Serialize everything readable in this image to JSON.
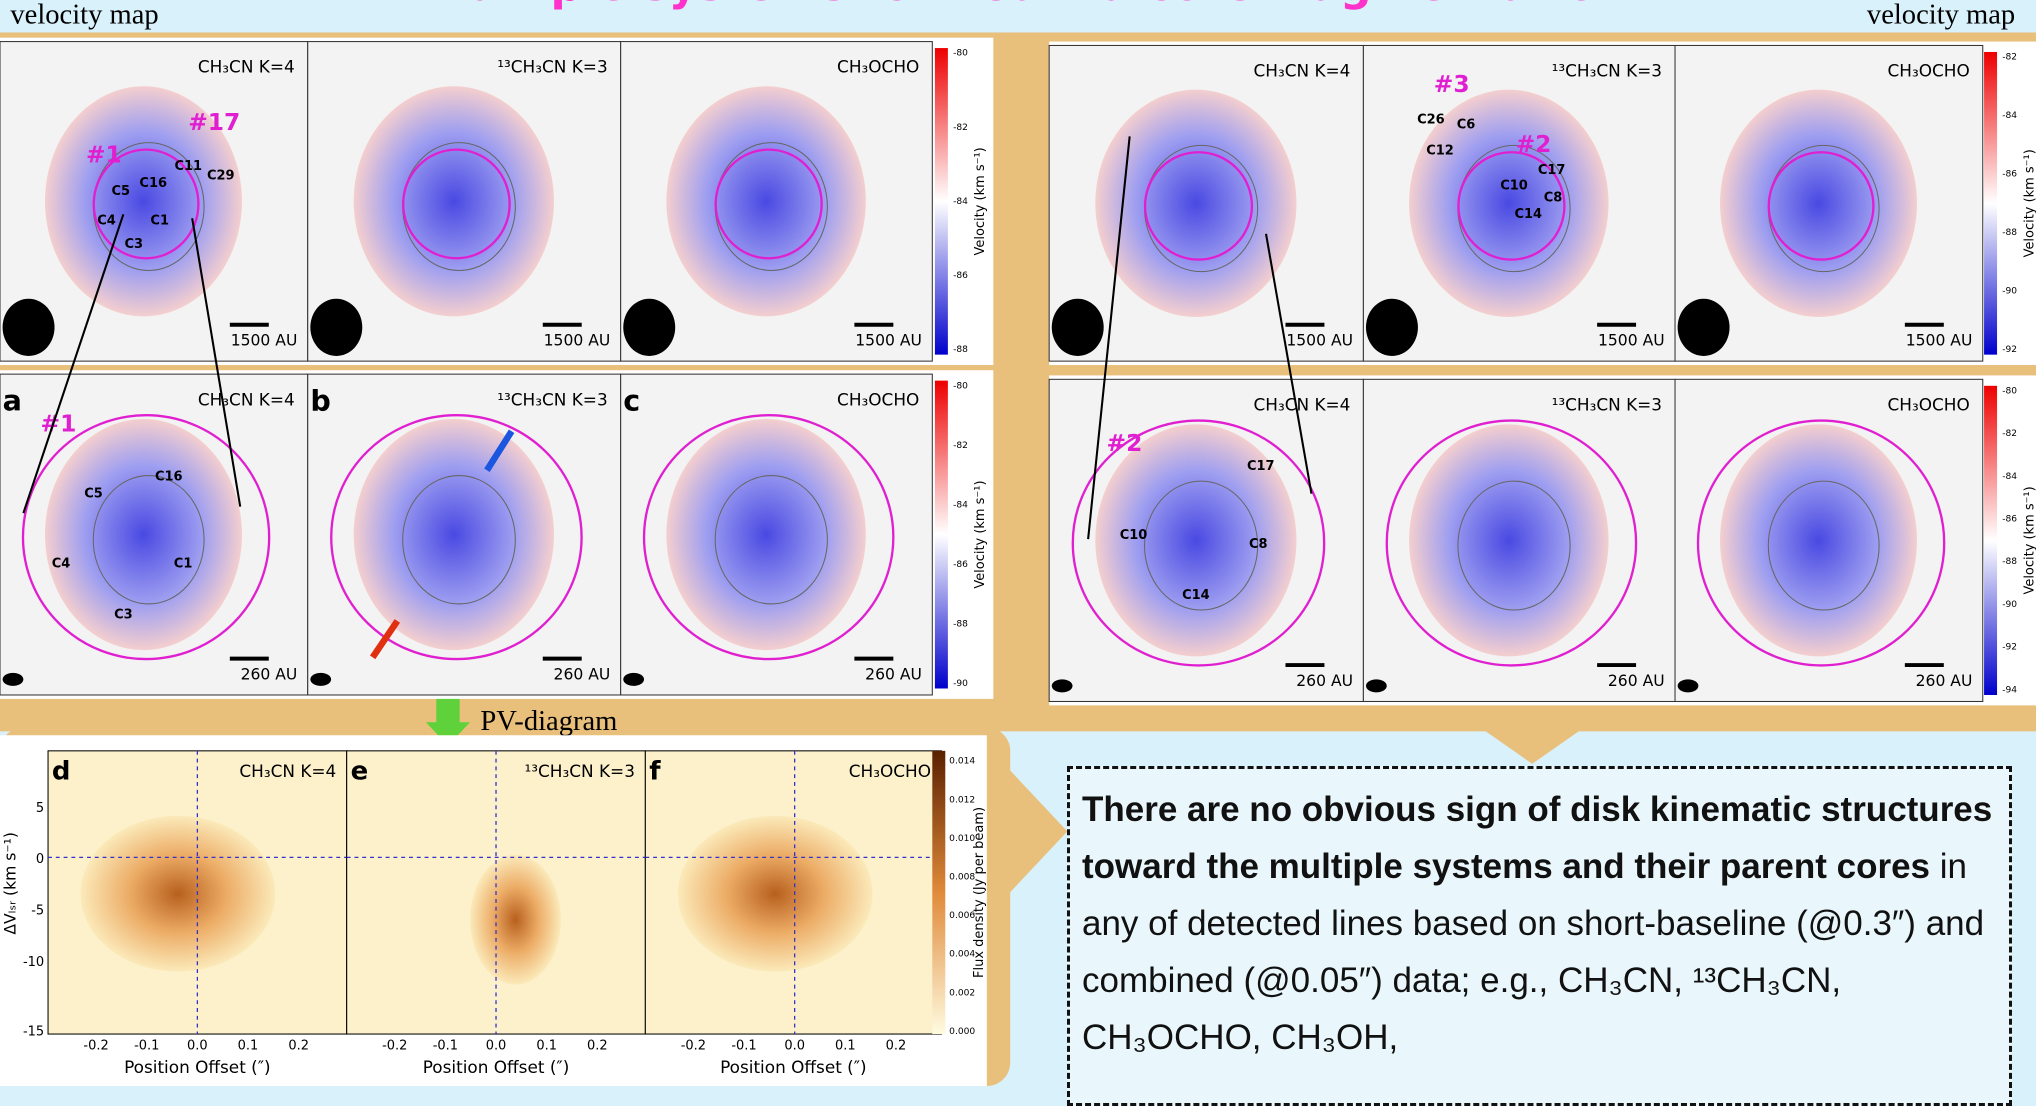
{
  "header": {
    "title": "Multiple systems formed via core fragmentation",
    "left_label": "velocity map",
    "right_label": "velocity map"
  },
  "velocity_maps": [
    {
      "panels": [
        {
          "line": "CH₃CN K=4",
          "scale_bar": "1500 AU"
        },
        {
          "line": "¹³CH₃CN K=3",
          "scale_bar": "1500 AU"
        },
        {
          "line": "CH₃OCHO",
          "scale_bar": "1500 AU"
        }
      ],
      "colorbar_label": "Velocity (km s⁻¹)",
      "colorbar_ticks": [
        "-80",
        "-82",
        "-84",
        "-86",
        "-88"
      ],
      "annotations": [
        "#1",
        "#17",
        "C5",
        "C16",
        "C11",
        "C29",
        "C4",
        "C1",
        "C3"
      ]
    },
    {
      "panels": [
        {
          "letter": "a",
          "line": "CH₃CN K=4",
          "scale_bar": "260 AU"
        },
        {
          "letter": "b",
          "line": "¹³CH₃CN K=3",
          "scale_bar": "260 AU"
        },
        {
          "letter": "c",
          "line": "CH₃OCHO",
          "scale_bar": "260 AU"
        }
      ],
      "colorbar_label": "Velocity (km s⁻¹)",
      "colorbar_ticks": [
        "-80",
        "-82",
        "-84",
        "-86",
        "-88",
        "-90"
      ],
      "annotations": [
        "#1",
        "C5",
        "C16",
        "C4",
        "C1",
        "C3"
      ]
    },
    {
      "panels": [
        {
          "line": "CH₃CN K=4",
          "scale_bar": "1500 AU"
        },
        {
          "line": "¹³CH₃CN K=3",
          "scale_bar": "1500 AU"
        },
        {
          "line": "CH₃OCHO",
          "scale_bar": "1500 AU"
        }
      ],
      "colorbar_label": "Velocity (km s⁻¹)",
      "colorbar_ticks": [
        "-82",
        "-84",
        "-86",
        "-88",
        "-90",
        "-92"
      ],
      "annotations": [
        "#3",
        "C26",
        "C6",
        "C12",
        "#2",
        "C17",
        "C10",
        "C8",
        "C14"
      ]
    },
    {
      "panels": [
        {
          "line": "CH₃CN K=4",
          "scale_bar": "260 AU"
        },
        {
          "line": "¹³CH₃CN K=3",
          "scale_bar": "260 AU"
        },
        {
          "line": "CH₃OCHO",
          "scale_bar": "260 AU"
        }
      ],
      "colorbar_label": "Velocity (km s⁻¹)",
      "colorbar_ticks": [
        "-80",
        "-82",
        "-84",
        "-86",
        "-88",
        "-90",
        "-92",
        "-94"
      ],
      "annotations": [
        "#2",
        "C17",
        "C10",
        "C8",
        "C14"
      ]
    }
  ],
  "pv": {
    "label": "PV-diagram",
    "panels": [
      {
        "letter": "d",
        "line": "CH₃CN K=4"
      },
      {
        "letter": "e",
        "line": "¹³CH₃CN K=3"
      },
      {
        "letter": "f",
        "line": "CH₃OCHO"
      }
    ],
    "x_label": "Position Offset (″)",
    "y_label": "ΔVₗₛᵣ (km s⁻¹)",
    "x_ticks": [
      "-0.2",
      "-0.1",
      "0.0",
      "0.1",
      "0.2"
    ],
    "y_ticks": [
      "5",
      "0",
      "-5",
      "-10",
      "-15"
    ],
    "colorbar_label": "Flux density (Jy per beam)",
    "colorbar_ticks": [
      "0.014",
      "0.012",
      "0.010",
      "0.008",
      "0.006",
      "0.004",
      "0.002",
      "0.000"
    ]
  },
  "text_box": {
    "bold": "There are no obvious sign of disk kinematic structures toward the multiple systems and their parent cores",
    "body": " in any of detected lines based on short-baseline (@0.3″) and combined (@0.05″) data; e.g., CH₃CN, ¹³CH₃CN, CH₃OCHO, CH₃OH,"
  }
}
